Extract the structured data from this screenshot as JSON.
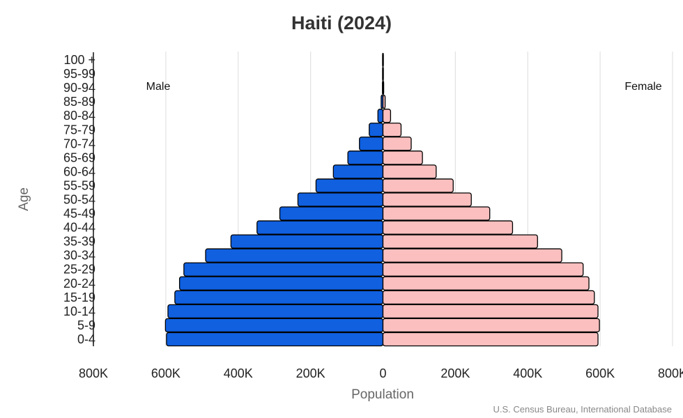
{
  "chart_data": {
    "type": "bar",
    "orientation": "horizontal-population-pyramid",
    "title": "Haiti (2024)",
    "xlabel": "Population",
    "ylabel": "Age",
    "xlim": [
      -800000,
      800000
    ],
    "x_tick_labels": [
      "800K",
      "600K",
      "400K",
      "200K",
      "0",
      "200K",
      "400K",
      "600K",
      "800K"
    ],
    "x_tick_values": [
      -800000,
      -600000,
      -400000,
      -200000,
      0,
      200000,
      400000,
      600000,
      800000
    ],
    "grid": true,
    "categories": [
      "0-4",
      "5-9",
      "10-14",
      "15-19",
      "20-24",
      "25-29",
      "30-34",
      "35-39",
      "40-44",
      "45-49",
      "50-54",
      "55-59",
      "60-64",
      "65-69",
      "70-74",
      "75-79",
      "80-84",
      "85-89",
      "90-94",
      "95-99",
      "100 +"
    ],
    "series": [
      {
        "name": "Male",
        "color": "#1060e0",
        "values": [
          598000,
          601000,
          594000,
          575000,
          562000,
          550000,
          490000,
          420000,
          348000,
          285000,
          235000,
          185000,
          137000,
          97000,
          65000,
          38000,
          14000,
          5000,
          1500,
          400,
          100
        ]
      },
      {
        "name": "Female",
        "color": "#fbbfbf",
        "values": [
          594000,
          598000,
          594000,
          584000,
          569000,
          553000,
          494000,
          427000,
          358000,
          295000,
          244000,
          194000,
          147000,
          109000,
          78000,
          50000,
          21000,
          6000,
          2000,
          600,
          150
        ]
      }
    ],
    "legend_placement": "top-left / top-right labels",
    "source": "U.S. Census Bureau, International Database"
  }
}
